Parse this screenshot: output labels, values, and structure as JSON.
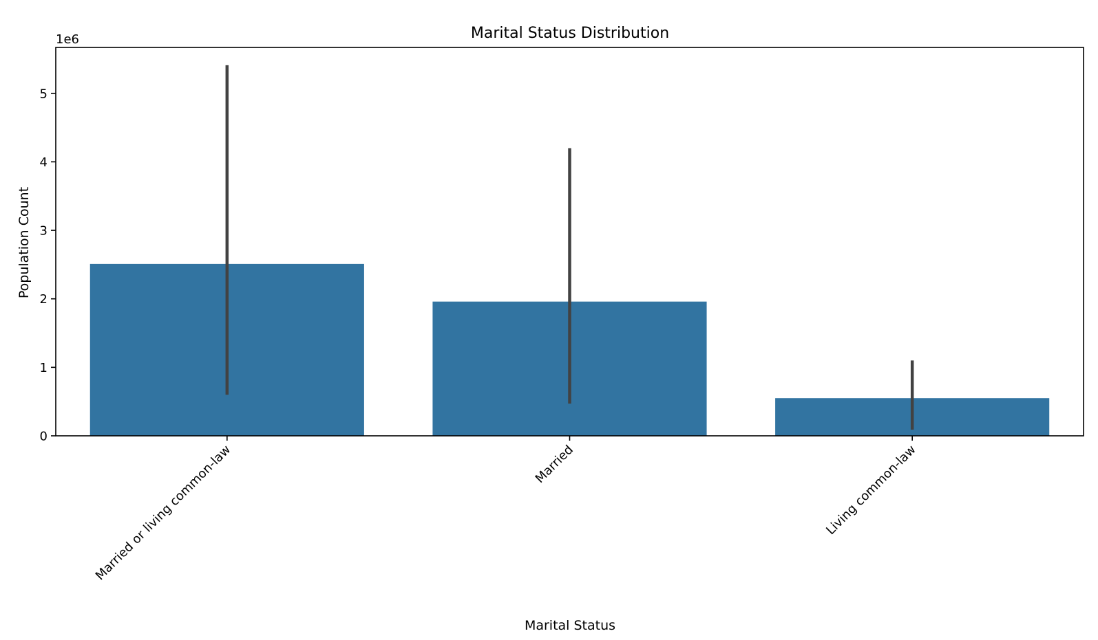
{
  "chart_data": {
    "type": "bar",
    "title": "Marital Status Distribution",
    "xlabel": "Marital Status",
    "ylabel": "Population Count",
    "y_offset_label": "1e6",
    "categories": [
      "Married or living common-law",
      "Married",
      "Living common-law"
    ],
    "values": [
      2510000,
      1960000,
      550000
    ],
    "error_bars": [
      {
        "low": 600000,
        "high": 5410000
      },
      {
        "low": 470000,
        "high": 4200000
      },
      {
        "low": 90000,
        "high": 1100000
      }
    ],
    "yticks": [
      {
        "value": 0,
        "label": "0"
      },
      {
        "value": 1000000,
        "label": "1"
      },
      {
        "value": 2000000,
        "label": "2"
      },
      {
        "value": 3000000,
        "label": "3"
      },
      {
        "value": 4000000,
        "label": "4"
      },
      {
        "value": 5000000,
        "label": "5"
      }
    ],
    "ylim": [
      0,
      5670000
    ],
    "grid": false,
    "legend": "none",
    "bar_color": "#3274a1",
    "error_color": "#424242"
  }
}
